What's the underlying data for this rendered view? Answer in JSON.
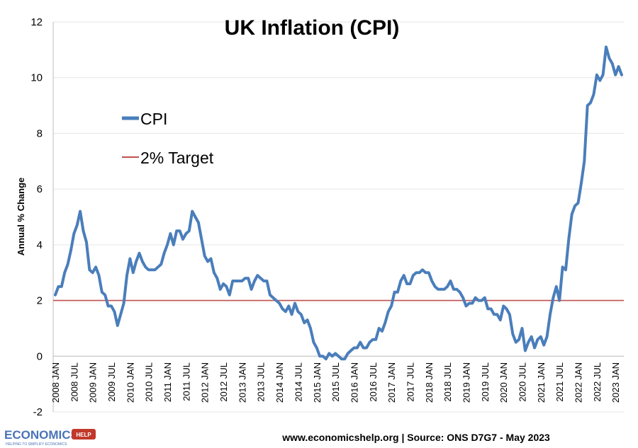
{
  "chart_data": {
    "type": "line",
    "title": "UK Inflation (CPI)",
    "ylabel": "Annual % Change",
    "xlabel": "",
    "ylim": [
      -2,
      12
    ],
    "yticks": [
      -2,
      0,
      2,
      4,
      6,
      8,
      10,
      12
    ],
    "xticks": [
      "2008 JAN",
      "2008 JUL",
      "2009 JAN",
      "2009 JUL",
      "2010 JAN",
      "2010 JUL",
      "2011 JAN",
      "2011 JUL",
      "2012 JAN",
      "2012 JUL",
      "2013 JAN",
      "2013 JUL",
      "2014 JAN",
      "2014 JUL",
      "2015 JAN",
      "2015 JUL",
      "2016 JAN",
      "2016 JUL",
      "2017 JAN",
      "2017 JUL",
      "2018 JAN",
      "2018 JUL",
      "2019 JAN",
      "2019 JUL",
      "2020 JAN",
      "2020 JUL",
      "2021 JAN",
      "2021 JUL",
      "2022 JAN",
      "2022 JUL",
      "2023 JAN"
    ],
    "grid": true,
    "legend_position": "upper-left",
    "series": [
      {
        "name": "CPI",
        "color": "#4a7ebb",
        "start": "2008-01",
        "frequency": "monthly",
        "values": [
          2.2,
          2.5,
          2.5,
          3.0,
          3.3,
          3.8,
          4.4,
          4.7,
          5.2,
          4.5,
          4.1,
          3.1,
          3.0,
          3.2,
          2.9,
          2.3,
          2.2,
          1.8,
          1.8,
          1.6,
          1.1,
          1.5,
          1.9,
          2.9,
          3.5,
          3.0,
          3.4,
          3.7,
          3.4,
          3.2,
          3.1,
          3.1,
          3.1,
          3.2,
          3.3,
          3.7,
          4.0,
          4.4,
          4.0,
          4.5,
          4.5,
          4.2,
          4.4,
          4.5,
          5.2,
          5.0,
          4.8,
          4.2,
          3.6,
          3.4,
          3.5,
          3.0,
          2.8,
          2.4,
          2.6,
          2.5,
          2.2,
          2.7,
          2.7,
          2.7,
          2.7,
          2.8,
          2.8,
          2.4,
          2.7,
          2.9,
          2.8,
          2.7,
          2.7,
          2.2,
          2.1,
          2.0,
          1.9,
          1.7,
          1.6,
          1.8,
          1.5,
          1.9,
          1.6,
          1.5,
          1.2,
          1.3,
          1.0,
          0.5,
          0.3,
          0.0,
          0.0,
          -0.1,
          0.1,
          0.0,
          0.1,
          0.0,
          -0.1,
          -0.1,
          0.1,
          0.2,
          0.3,
          0.3,
          0.5,
          0.3,
          0.3,
          0.5,
          0.6,
          0.6,
          1.0,
          0.9,
          1.2,
          1.6,
          1.8,
          2.3,
          2.3,
          2.7,
          2.9,
          2.6,
          2.6,
          2.9,
          3.0,
          3.0,
          3.1,
          3.0,
          3.0,
          2.7,
          2.5,
          2.4,
          2.4,
          2.4,
          2.5,
          2.7,
          2.4,
          2.4,
          2.3,
          2.1,
          1.8,
          1.9,
          1.9,
          2.1,
          2.0,
          2.0,
          2.1,
          1.7,
          1.7,
          1.5,
          1.5,
          1.3,
          1.8,
          1.7,
          1.5,
          0.8,
          0.5,
          0.6,
          1.0,
          0.2,
          0.5,
          0.7,
          0.3,
          0.6,
          0.7,
          0.4,
          0.7,
          1.5,
          2.1,
          2.5,
          2.0,
          3.2,
          3.1,
          4.2,
          5.1,
          5.4,
          5.5,
          6.2,
          7.0,
          9.0,
          9.1,
          9.4,
          10.1,
          9.9,
          10.1,
          11.1,
          10.7,
          10.5,
          10.1,
          10.4,
          10.1
        ]
      },
      {
        "name": "2% Target",
        "color": "#c0504d",
        "constant": 2
      }
    ]
  },
  "footer": {
    "source": "www.economicshelp.org | Source: ONS D7G7 - May 2023"
  },
  "logo": {
    "text": "ECONOMICS",
    "badge": "HELP",
    "tagline": "HELPING TO SIMPLIFY ECONOMICS"
  }
}
